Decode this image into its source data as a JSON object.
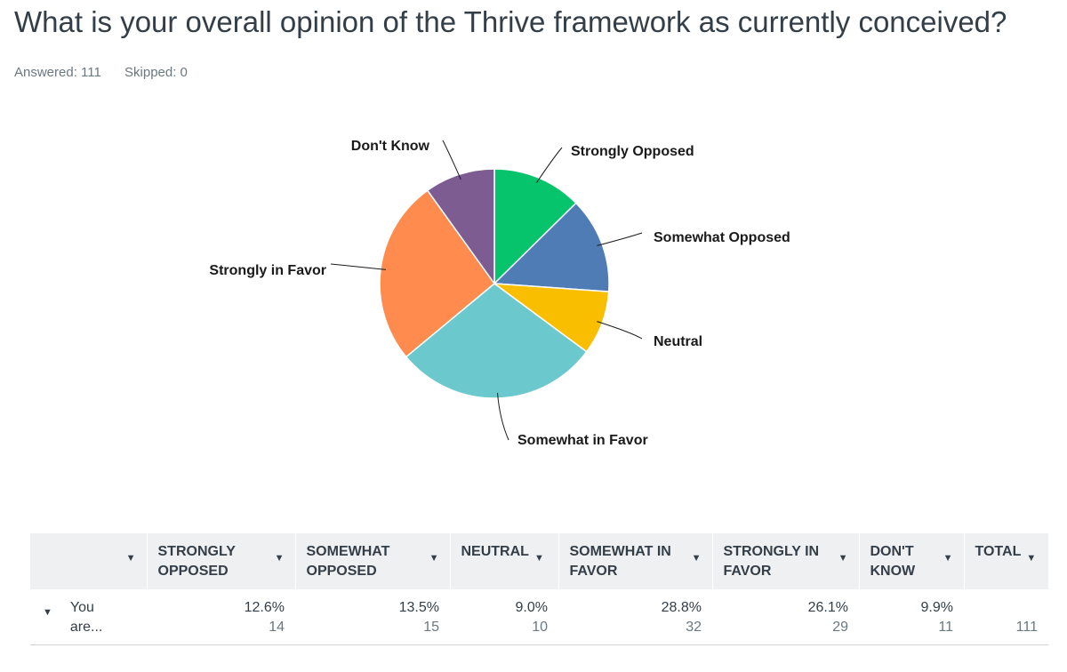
{
  "question": {
    "title": "What is your overall opinion of the Thrive framework as currently conceived?",
    "answered": "Answered: 111",
    "skipped": "Skipped: 0"
  },
  "chart_data": {
    "type": "pie",
    "title": "",
    "slices": [
      {
        "label": "Strongly Opposed",
        "value": 12.6,
        "count": 14,
        "color": "#05c46b"
      },
      {
        "label": "Somewhat Opposed",
        "value": 13.5,
        "count": 15,
        "color": "#507cb6"
      },
      {
        "label": "Neutral",
        "value": 9.0,
        "count": 10,
        "color": "#f9be00"
      },
      {
        "label": "Somewhat in Favor",
        "value": 28.8,
        "count": 32,
        "color": "#6bc8cd"
      },
      {
        "label": "Strongly in Favor",
        "value": 26.1,
        "count": 29,
        "color": "#ff8b4f"
      },
      {
        "label": "Don't Know",
        "value": 9.9,
        "count": 11,
        "color": "#7d5c91"
      }
    ]
  },
  "table": {
    "headers": [
      {
        "line1": "",
        "line2": ""
      },
      {
        "line1": "STRONGLY",
        "line2": "OPPOSED"
      },
      {
        "line1": "SOMEWHAT",
        "line2": "OPPOSED"
      },
      {
        "line1": "NEUTRAL",
        "line2": ""
      },
      {
        "line1": "SOMEWHAT IN",
        "line2": "FAVOR"
      },
      {
        "line1": "STRONGLY IN",
        "line2": "FAVOR"
      },
      {
        "line1": "DON'T",
        "line2": "KNOW"
      },
      {
        "line1": "TOTAL",
        "line2": ""
      }
    ],
    "row": {
      "label_line1": "You",
      "label_line2": "are...",
      "cells": [
        {
          "pct": "12.6%",
          "count": "14"
        },
        {
          "pct": "13.5%",
          "count": "15"
        },
        {
          "pct": "9.0%",
          "count": "10"
        },
        {
          "pct": "28.8%",
          "count": "32"
        },
        {
          "pct": "26.1%",
          "count": "29"
        },
        {
          "pct": "9.9%",
          "count": "11"
        }
      ],
      "total": "111"
    }
  }
}
